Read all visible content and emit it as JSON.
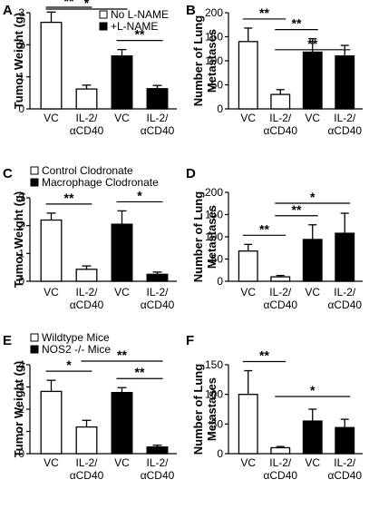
{
  "chart_data": [
    {
      "panel": "A",
      "type": "bar",
      "categories": [
        "VC",
        "IL-2/αCD40",
        "VC",
        "IL-2/αCD40"
      ],
      "values": [
        2.7,
        0.62,
        1.65,
        0.63
      ],
      "errors": [
        0.32,
        0.12,
        0.2,
        0.1
      ],
      "bar_colors": [
        "#ffffff",
        "#ffffff",
        "#000000",
        "#000000"
      ],
      "ylabel": "Tumor Weight (g)",
      "ylim": [
        0,
        3
      ],
      "yticks": [
        0,
        1,
        2,
        3
      ],
      "legend": [
        "No L-NAME",
        "+L-NAME"
      ],
      "significance": [
        {
          "from": 0,
          "to": 1,
          "label": "**"
        },
        {
          "from": 0,
          "to": 2,
          "label": "*"
        },
        {
          "from": 2,
          "to": 3,
          "label": "**"
        }
      ]
    },
    {
      "panel": "B",
      "type": "bar",
      "categories": [
        "VC",
        "IL-2/αCD40",
        "VC",
        "IL-2/αCD40"
      ],
      "values": [
        140,
        30,
        118,
        110
      ],
      "errors": [
        28,
        10,
        28,
        22
      ],
      "bar_colors": [
        "#ffffff",
        "#ffffff",
        "#000000",
        "#000000"
      ],
      "ylabel": "Number of Lung Metastases",
      "ylim": [
        0,
        200
      ],
      "yticks": [
        0,
        50,
        100,
        150,
        200
      ],
      "legend": [],
      "significance": [
        {
          "from": 0,
          "to": 1,
          "label": "**"
        },
        {
          "from": 1,
          "to": 2,
          "label": "**"
        },
        {
          "from": 1,
          "to": 3,
          "label": "**"
        }
      ]
    },
    {
      "panel": "C",
      "type": "bar",
      "categories": [
        "VC",
        "IL-2/αCD40",
        "VC",
        "IL-2/αCD40"
      ],
      "values": [
        2.2,
        0.43,
        2.05,
        0.25
      ],
      "errors": [
        0.25,
        0.12,
        0.48,
        0.08
      ],
      "bar_colors": [
        "#ffffff",
        "#ffffff",
        "#000000",
        "#000000"
      ],
      "ylabel": "Tumor Weight (g)",
      "ylim": [
        0,
        3
      ],
      "yticks": [
        0,
        1,
        2,
        3
      ],
      "legend": [
        "Control Clodronate",
        "Macrophage Clodronate"
      ],
      "significance": [
        {
          "from": 0,
          "to": 1,
          "label": "**"
        },
        {
          "from": 2,
          "to": 3,
          "label": "*"
        }
      ]
    },
    {
      "panel": "D",
      "type": "bar",
      "categories": [
        "VC",
        "IL-2/αCD40",
        "VC",
        "IL-2/αCD40"
      ],
      "values": [
        68,
        10,
        94,
        108
      ],
      "errors": [
        15,
        3,
        33,
        45
      ],
      "bar_colors": [
        "#ffffff",
        "#ffffff",
        "#000000",
        "#000000"
      ],
      "ylabel": "Number of Lung Metastases",
      "ylim": [
        0,
        200
      ],
      "yticks": [
        0,
        50,
        100,
        150,
        200
      ],
      "legend": [],
      "significance": [
        {
          "from": 0,
          "to": 1,
          "label": "**"
        },
        {
          "from": 1,
          "to": 2,
          "label": "**"
        },
        {
          "from": 1,
          "to": 3,
          "label": "*"
        }
      ]
    },
    {
      "panel": "E",
      "type": "bar",
      "categories": [
        "VC",
        "IL-2/αCD40",
        "VC",
        "IL-2/αCD40"
      ],
      "values": [
        2.8,
        1.2,
        2.75,
        0.3
      ],
      "errors": [
        0.5,
        0.3,
        0.22,
        0.08
      ],
      "bar_colors": [
        "#ffffff",
        "#ffffff",
        "#000000",
        "#000000"
      ],
      "ylabel": "Tumor Weight (g)",
      "ylim": [
        0,
        4
      ],
      "yticks": [
        0,
        1,
        2,
        3,
        4
      ],
      "legend": [
        "Wildtype Mice",
        "NOS2 -/- Mice"
      ],
      "significance": [
        {
          "from": 0,
          "to": 1,
          "label": "*"
        },
        {
          "from": 1,
          "to": 3,
          "label": "**"
        },
        {
          "from": 2,
          "to": 3,
          "label": "**"
        }
      ]
    },
    {
      "panel": "F",
      "type": "bar",
      "categories": [
        "VC",
        "IL-2/αCD40",
        "VC",
        "IL-2/αCD40"
      ],
      "values": [
        100,
        10,
        55,
        44
      ],
      "errors": [
        40,
        2,
        20,
        14
      ],
      "bar_colors": [
        "#ffffff",
        "#ffffff",
        "#000000",
        "#000000"
      ],
      "ylabel": "Number of Lung Metastases",
      "ylim": [
        0,
        150
      ],
      "yticks": [
        0,
        50,
        100,
        150
      ],
      "legend": [],
      "significance": [
        {
          "from": 0,
          "to": 1,
          "label": "**"
        },
        {
          "from": 1,
          "to": 3,
          "label": "*"
        }
      ]
    }
  ]
}
